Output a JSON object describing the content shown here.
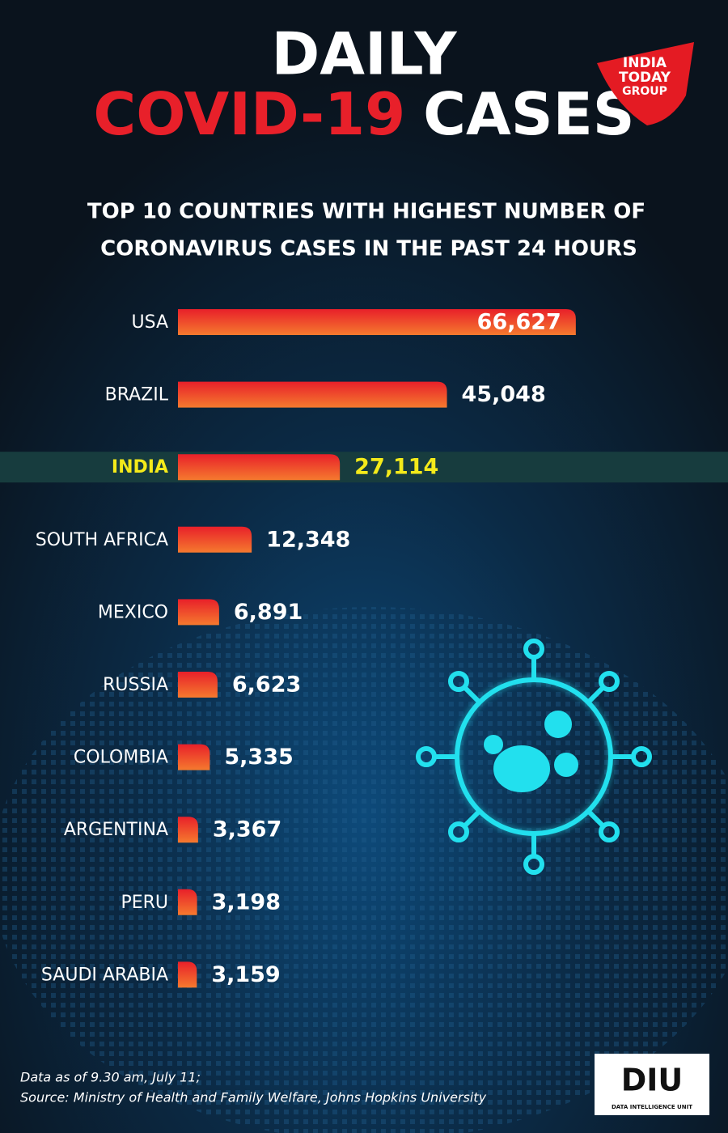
{
  "chart_data": {
    "type": "bar",
    "orientation": "horizontal",
    "title": [
      "DAILY",
      "COVID-19",
      "CASES"
    ],
    "subtitle": [
      "TOP 10 COUNTRIES WITH HIGHEST NUMBER OF",
      "CORONAVIRUS CASES IN THE PAST 24 HOURS"
    ],
    "categories": [
      "USA",
      "BRAZIL",
      "INDIA",
      "SOUTH AFRICA",
      "MEXICO",
      "RUSSIA",
      "COLOMBIA",
      "ARGENTINA",
      "PERU",
      "SAUDI ARABIA"
    ],
    "values": [
      66627,
      45048,
      27114,
      12348,
      6891,
      6623,
      5335,
      3367,
      3198,
      3159
    ],
    "value_labels": [
      "66,627",
      "45,048",
      "27,114",
      "12,348",
      "6,891",
      "6,623",
      "5,335",
      "3,367",
      "3,198",
      "3,159"
    ],
    "xlim": [
      0,
      68000
    ],
    "highlight": "INDIA",
    "colors": {
      "bar_top": "#e8202a",
      "bar_bottom": "#f57a2e",
      "highlight_text": "#f4ea1a",
      "highlight_band": "#173c3e"
    },
    "notes": [
      "Data as of 9.30 am, July 11;",
      "Source: Ministry of Health and Family Welfare, Johns Hopkins University"
    ],
    "logo": [
      "INDIA",
      "TODAY",
      "GROUP"
    ],
    "badge": {
      "name": "DIU",
      "caption": "DATA INTELLIGENCE UNIT"
    }
  }
}
